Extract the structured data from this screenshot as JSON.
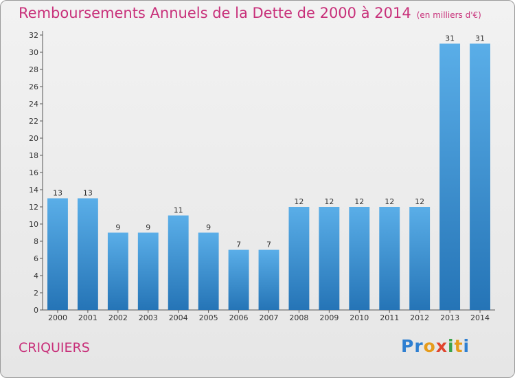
{
  "title": "Remboursements Annuels de la Dette de 2000 à 2014",
  "unit_note": "(en milliers d'€)",
  "commune": "CRIQUIERS",
  "logo": "Proxiti",
  "colors": {
    "bar": "#3d8fd6",
    "title": "#c8307a"
  },
  "chart_data": {
    "type": "bar",
    "title": "Remboursements Annuels de la Dette de 2000 à 2014",
    "xlabel": "",
    "ylabel": "",
    "categories": [
      "2000",
      "2001",
      "2002",
      "2003",
      "2004",
      "2005",
      "2006",
      "2007",
      "2008",
      "2009",
      "2010",
      "2011",
      "2012",
      "2013",
      "2014"
    ],
    "values": [
      13,
      13,
      9,
      9,
      11,
      9,
      7,
      7,
      12,
      12,
      12,
      12,
      12,
      31,
      31
    ],
    "ylim": [
      0,
      32
    ],
    "yticks": [
      0,
      2,
      4,
      6,
      8,
      10,
      12,
      14,
      16,
      18,
      20,
      22,
      24,
      26,
      28,
      30,
      32
    ],
    "grid": false
  }
}
